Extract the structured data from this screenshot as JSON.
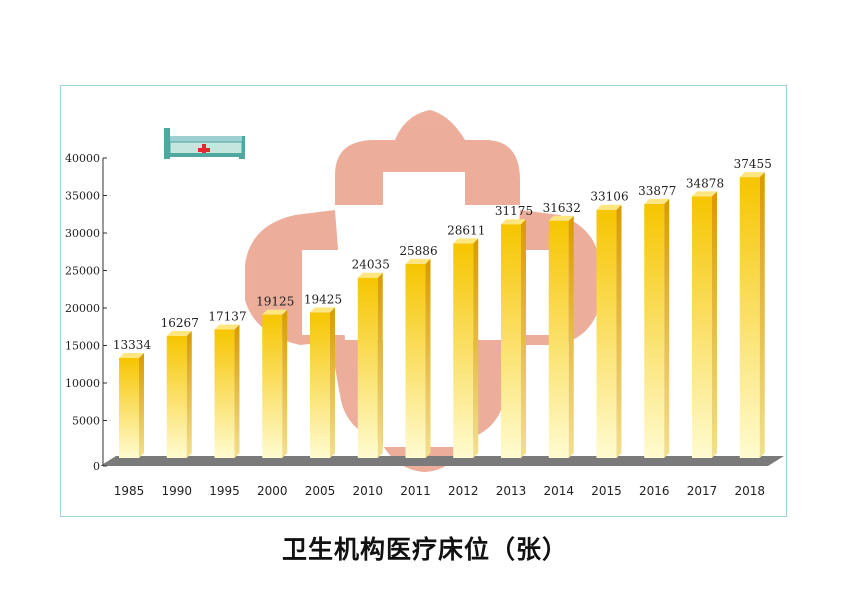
{
  "chart_data": {
    "type": "bar",
    "title": "卫生机构医疗床位（张）",
    "categories": [
      "1985",
      "1990",
      "1995",
      "2000",
      "2005",
      "2010",
      "2011",
      "2012",
      "2013",
      "2014",
      "2015",
      "2016",
      "2017",
      "2018"
    ],
    "values": [
      13334,
      16267,
      17137,
      19125,
      19425,
      24035,
      25886,
      28611,
      31175,
      31632,
      33106,
      33877,
      34878,
      37455
    ],
    "data_labels": [
      "13334",
      "16267",
      "17137",
      "19125",
      "19425",
      "24035",
      "25886",
      "28611",
      "31175",
      "31632",
      "33106",
      "33877",
      "34878",
      "37455"
    ],
    "ylim": [
      0,
      40000
    ],
    "y_ticks": [
      0,
      5000,
      10000,
      15000,
      20000,
      25000,
      30000,
      35000,
      40000
    ],
    "y_tick_labels": [
      "0",
      "5000",
      "10000",
      "15000",
      "20000",
      "25000",
      "30000",
      "35000",
      "40000"
    ],
    "xlabel": "",
    "ylabel": "",
    "grid": false,
    "colors": {
      "bar_top": "#f6c500",
      "bar_bottom": "#fffbd0",
      "bar_side": "#d99a00",
      "bar_cap": "#ffe680",
      "floor": "#7a7a7a",
      "frame": "#9ed4d8",
      "watermark": "#eaa590"
    },
    "decorations": {
      "bed": "hospital-bed-icon",
      "watermark": "medical-cross-emblem"
    }
  }
}
